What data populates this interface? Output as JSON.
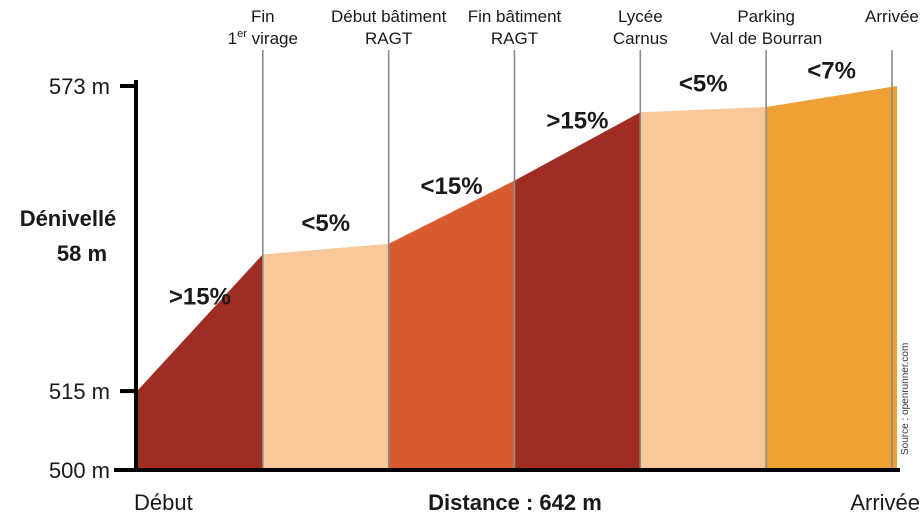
{
  "chart_data": {
    "type": "area",
    "title": "",
    "xlabel": "Distance : 642 m",
    "x_start_label": "Début",
    "x_end_label": "Arrivée",
    "y_unit": "m",
    "ylim": [
      500,
      573
    ],
    "yticks": [
      {
        "value": 573,
        "label": "573 m"
      },
      {
        "value": 515,
        "label": "515 m"
      },
      {
        "value": 500,
        "label": "500 m"
      }
    ],
    "elevation_gain": {
      "line1": "Dénivellé",
      "line2": "58 m"
    },
    "xlim": [
      0,
      6.04
    ],
    "markers": [
      {
        "x": 1.0,
        "line1": "Fin",
        "line2_sup": "er",
        "line2_pre": "1",
        "line2": " virage"
      },
      {
        "x": 2.0,
        "line1": "Début bâtiment",
        "line2": "RAGT"
      },
      {
        "x": 3.0,
        "line1": "Fin bâtiment",
        "line2": "RAGT"
      },
      {
        "x": 4.0,
        "line1": "Lycée",
        "line2": "Carnus"
      },
      {
        "x": 5.0,
        "line1": "Parking",
        "line2": "Val de Bourran"
      },
      {
        "x": 6.0,
        "line1": "Arrivée",
        "line2": ""
      }
    ],
    "segments": [
      {
        "label": ">15%",
        "color": "#a02d24",
        "x_start": 0.0,
        "x_end": 1.0,
        "y_start": 515,
        "y_end": 541
      },
      {
        "label": "<5%",
        "color": "#f8c89a",
        "x_start": 1.0,
        "x_end": 2.0,
        "y_start": 541,
        "y_end": 543
      },
      {
        "label": "<15%",
        "color": "#d75b2f",
        "x_start": 2.0,
        "x_end": 3.0,
        "y_start": 543,
        "y_end": 555
      },
      {
        "label": ">15%",
        "color": "#a02d24",
        "x_start": 3.0,
        "x_end": 4.0,
        "y_start": 555,
        "y_end": 568
      },
      {
        "label": "<5%",
        "color": "#f8c89a",
        "x_start": 4.0,
        "x_end": 5.0,
        "y_start": 568,
        "y_end": 569
      },
      {
        "label": "<7%",
        "color": "#eda033",
        "x_start": 5.0,
        "x_end": 6.04,
        "y_start": 569,
        "y_end": 573
      }
    ],
    "source": "Source : openrunner.com"
  }
}
